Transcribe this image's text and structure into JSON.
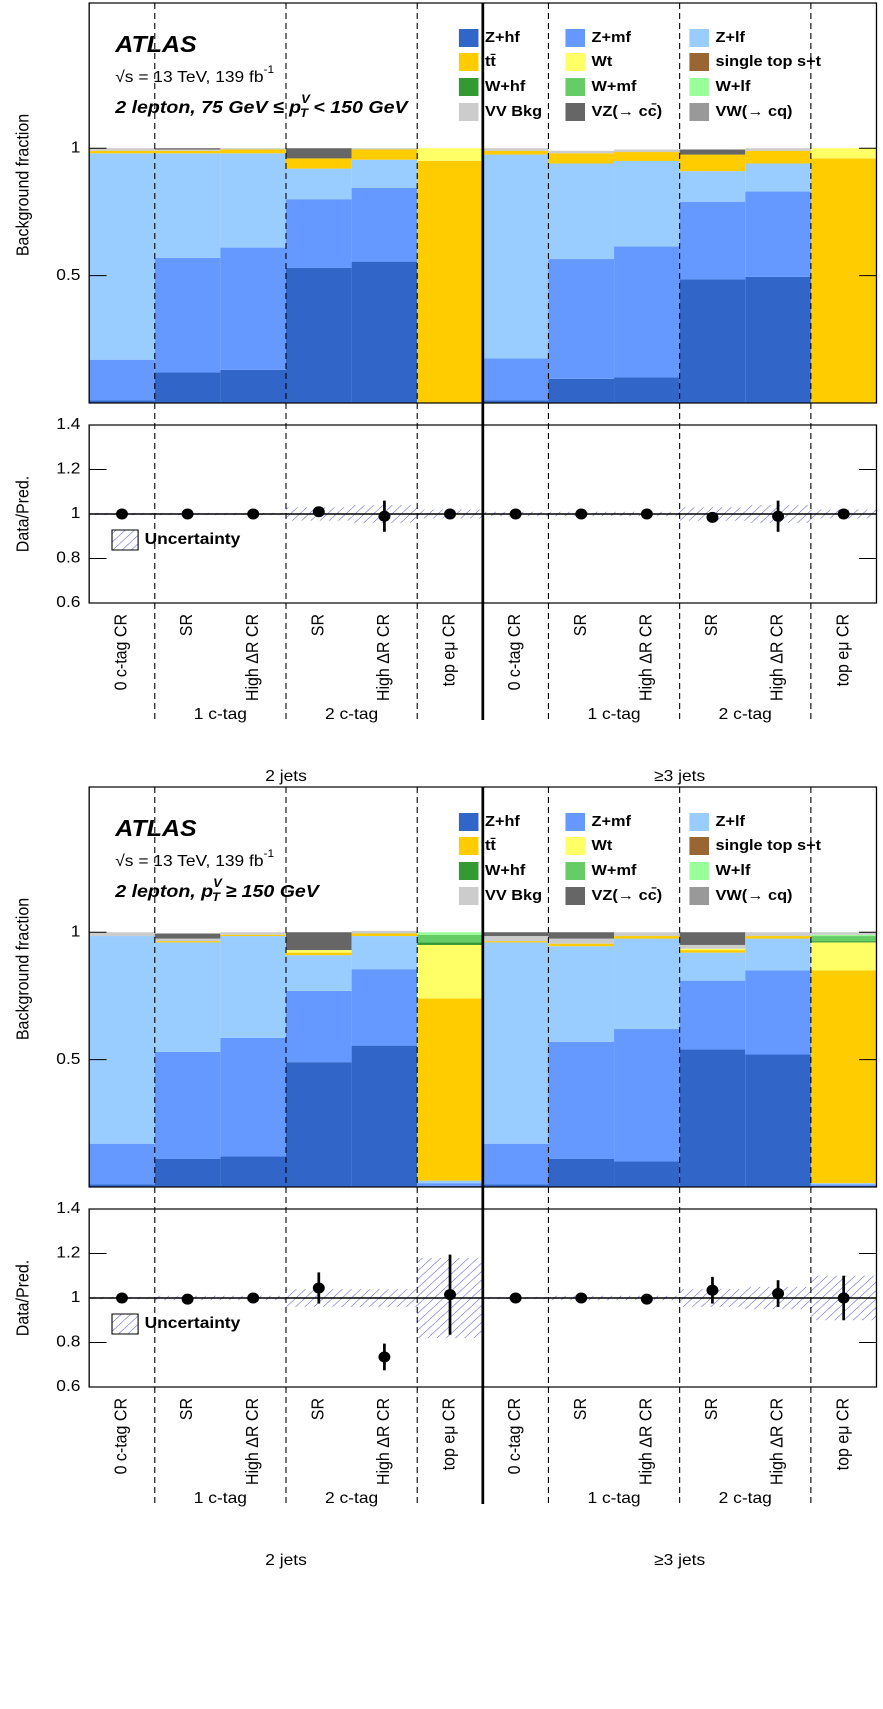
{
  "chart_data": [
    {
      "type": "bar",
      "stacked": true,
      "ylabel": "Background fraction",
      "ylim": [
        0,
        1.57
      ],
      "yticks": [
        0.5,
        1
      ],
      "annotations": [
        "ATLAS",
        "√s = 13 TeV, 139 fb",
        "-1"
      ],
      "region": [
        "2 lepton, 75 GeV ≤ p",
        "V",
        "T",
        " < 150 GeV"
      ],
      "series": [
        {
          "name": "Z+hf",
          "color": "#3166c8",
          "values": [
            0.01,
            0.12,
            0.13,
            0.53,
            0.555,
            0,
            0.01,
            0.095,
            0.1,
            0.485,
            0.495,
            0
          ]
        },
        {
          "name": "Z+mf",
          "color": "#6699ff",
          "values": [
            0.16,
            0.45,
            0.48,
            0.27,
            0.29,
            0,
            0.165,
            0.47,
            0.515,
            0.305,
            0.335,
            0
          ]
        },
        {
          "name": "Z+lf",
          "color": "#99ccff",
          "values": [
            0.81,
            0.41,
            0.37,
            0.12,
            0.11,
            0,
            0.8,
            0.375,
            0.335,
            0.12,
            0.11,
            0
          ]
        },
        {
          "name": "tt̄",
          "color": "#ffcc00",
          "values": [
            0.01,
            0.01,
            0.015,
            0.04,
            0.04,
            0.95,
            0.015,
            0.04,
            0.035,
            0.065,
            0.05,
            0.96
          ]
        },
        {
          "name": "Wt",
          "color": "#ffff66",
          "values": [
            0,
            0,
            0,
            0,
            0,
            0.05,
            0,
            0,
            0,
            0,
            0,
            0.04
          ]
        },
        {
          "name": "single top s+t",
          "color": "#996633",
          "values": [
            0,
            0,
            0,
            0,
            0,
            0,
            0,
            0,
            0,
            0,
            0,
            0
          ]
        },
        {
          "name": "W+hf",
          "color": "#339933",
          "values": [
            0,
            0,
            0,
            0,
            0,
            0,
            0,
            0,
            0,
            0,
            0,
            0
          ]
        },
        {
          "name": "W+mf",
          "color": "#66cc66",
          "values": [
            0,
            0,
            0,
            0,
            0,
            0,
            0,
            0,
            0,
            0,
            0,
            0
          ]
        },
        {
          "name": "W+lf",
          "color": "#99ff99",
          "values": [
            0,
            0,
            0,
            0,
            0,
            0,
            0,
            0,
            0,
            0,
            0,
            0
          ]
        },
        {
          "name": "VV Bkg",
          "color": "#cccccc",
          "values": [
            0.01,
            0.005,
            0.005,
            0,
            0.005,
            0,
            0.01,
            0.01,
            0.01,
            0,
            0.01,
            0
          ]
        },
        {
          "name": "VZ(→ cc̄)",
          "color": "#666666",
          "values": [
            0,
            0.005,
            0,
            0.04,
            0,
            0,
            0,
            0,
            0,
            0.02,
            0,
            0
          ]
        },
        {
          "name": "VW(→ cq)",
          "color": "#999999",
          "values": [
            0,
            0,
            0,
            0,
            0,
            0,
            0,
            0,
            0,
            0,
            0,
            0
          ]
        }
      ]
    },
    {
      "type": "errorbar",
      "ylabel": "Data/Pred.",
      "ylim": [
        0.6,
        1.4
      ],
      "yticks": [
        0.6,
        0.8,
        1,
        1.2,
        1.4
      ],
      "legend": "Uncertainty",
      "categories": [
        "0 c-tag CR",
        "SR",
        "High ΔR CR",
        "SR",
        "High ΔR CR",
        "top eμ CR",
        "0 c-tag CR",
        "SR",
        "High ΔR CR",
        "SR",
        "High ΔR CR",
        "top eμ CR"
      ],
      "groups": [
        "1 c-tag",
        "2 c-tag",
        "1 c-tag",
        "2 c-tag"
      ],
      "jets": [
        "2 jets",
        "≥3 jets"
      ],
      "values": [
        1.0,
        1.0,
        1.0,
        1.01,
        0.99,
        1.0,
        1.0,
        1.0,
        1.0,
        0.985,
        0.99,
        1.0
      ],
      "errors": [
        0.005,
        0.005,
        0.005,
        0.01,
        0.07,
        0.01,
        0.005,
        0.005,
        0.005,
        0.01,
        0.07,
        0.01
      ],
      "uncertainty": [
        0.005,
        0.005,
        0.005,
        0.03,
        0.04,
        0.02,
        0.01,
        0.01,
        0.01,
        0.03,
        0.04,
        0.02
      ]
    },
    {
      "type": "bar",
      "stacked": true,
      "ylabel": "Background fraction",
      "ylim": [
        0,
        1.57
      ],
      "yticks": [
        0.5,
        1
      ],
      "annotations": [
        "ATLAS",
        "√s = 13 TeV, 139 fb",
        "-1"
      ],
      "region": [
        "2 lepton, p",
        "V",
        "T",
        " ≥ 150 GeV"
      ],
      "series": [
        {
          "name": "Z+hf",
          "color": "#3166c8",
          "values": [
            0.01,
            0.11,
            0.12,
            0.49,
            0.555,
            0.005,
            0.01,
            0.11,
            0.1,
            0.54,
            0.52,
            0.005
          ]
        },
        {
          "name": "Z+mf",
          "color": "#6699ff",
          "values": [
            0.16,
            0.42,
            0.465,
            0.28,
            0.3,
            0.01,
            0.16,
            0.46,
            0.52,
            0.27,
            0.33,
            0.005
          ]
        },
        {
          "name": "Z+lf",
          "color": "#99ccff",
          "values": [
            0.815,
            0.43,
            0.4,
            0.14,
            0.13,
            0.01,
            0.79,
            0.375,
            0.355,
            0.11,
            0.125,
            0.005
          ]
        },
        {
          "name": "tt̄",
          "color": "#ffcc00",
          "values": [
            0,
            0.005,
            0.005,
            0.01,
            0.01,
            0.715,
            0.005,
            0.01,
            0.01,
            0.01,
            0.01,
            0.835
          ]
        },
        {
          "name": "Wt",
          "color": "#ffff66",
          "values": [
            0,
            0,
            0,
            0.01,
            0,
            0.21,
            0,
            0,
            0,
            0.005,
            0,
            0.11
          ]
        },
        {
          "name": "single top s+t",
          "color": "#996633",
          "values": [
            0,
            0,
            0,
            0,
            0,
            0,
            0,
            0,
            0,
            0,
            0,
            0
          ]
        },
        {
          "name": "W+hf",
          "color": "#339933",
          "values": [
            0,
            0,
            0,
            0,
            0,
            0.01,
            0,
            0,
            0,
            0,
            0,
            0.005
          ]
        },
        {
          "name": "W+mf",
          "color": "#66cc66",
          "values": [
            0,
            0,
            0,
            0,
            0,
            0.03,
            0,
            0,
            0,
            0,
            0,
            0.02
          ]
        },
        {
          "name": "W+lf",
          "color": "#99ff99",
          "values": [
            0,
            0,
            0,
            0,
            0,
            0.01,
            0,
            0,
            0,
            0,
            0,
            0.005
          ]
        },
        {
          "name": "VV Bkg",
          "color": "#cccccc",
          "values": [
            0.015,
            0.01,
            0.01,
            0,
            0.01,
            0,
            0.02,
            0.02,
            0.015,
            0.015,
            0.015,
            0.01
          ]
        },
        {
          "name": "VZ(→ cc̄)",
          "color": "#666666",
          "values": [
            0,
            0.02,
            0,
            0.07,
            0,
            0,
            0.015,
            0.025,
            0,
            0.05,
            0,
            0
          ]
        },
        {
          "name": "VW(→ cq)",
          "color": "#999999",
          "values": [
            0,
            0,
            0,
            0,
            0,
            0,
            0,
            0,
            0,
            0,
            0,
            0
          ]
        }
      ]
    },
    {
      "type": "errorbar",
      "ylabel": "Data/Pred.",
      "ylim": [
        0.6,
        1.4
      ],
      "yticks": [
        0.6,
        0.8,
        1,
        1.2,
        1.4
      ],
      "legend": "Uncertainty",
      "categories": [
        "0 c-tag CR",
        "SR",
        "High ΔR CR",
        "SR",
        "High ΔR CR",
        "top eμ CR",
        "0 c-tag CR",
        "SR",
        "High ΔR CR",
        "SR",
        "High ΔR CR",
        "top eμ CR"
      ],
      "groups": [
        "1 c-tag",
        "2 c-tag",
        "1 c-tag",
        "2 c-tag"
      ],
      "jets": [
        "2 jets",
        "≥3 jets"
      ],
      "values": [
        1.0,
        0.995,
        1.0,
        1.045,
        0.735,
        1.015,
        1.0,
        1.0,
        0.995,
        1.035,
        1.02,
        1.0
      ],
      "errors": [
        0.01,
        0.01,
        0.01,
        0.07,
        0.06,
        0.18,
        0.01,
        0.01,
        0.01,
        0.06,
        0.06,
        0.1
      ],
      "uncertainty": [
        0.005,
        0.01,
        0.01,
        0.04,
        0.04,
        0.18,
        0.005,
        0.01,
        0.01,
        0.04,
        0.05,
        0.1
      ]
    }
  ]
}
